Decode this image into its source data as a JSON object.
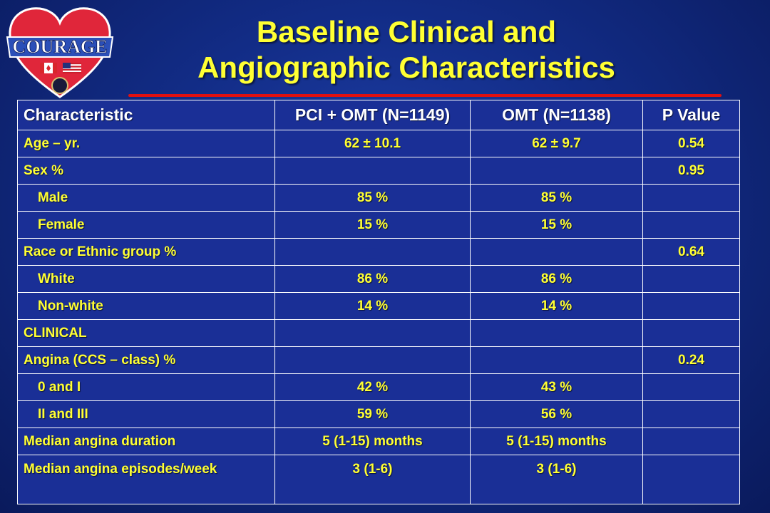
{
  "logo": {
    "text": "COURAGE"
  },
  "title": {
    "line1": "Baseline Clinical and",
    "line2": "Angiographic Characteristics"
  },
  "table": {
    "headers": [
      "Characteristic",
      "PCI + OMT (N=1149)",
      "OMT (N=1138)",
      "P Value"
    ],
    "rows": [
      {
        "label": "Age – yr.",
        "pci": "62 ± 10.1",
        "omt": "62 ± 9.7",
        "p": "0.54",
        "indent": false
      },
      {
        "label": "Sex %",
        "pci": "",
        "omt": "",
        "p": "0.95",
        "indent": false
      },
      {
        "label": "Male",
        "pci": "85 %",
        "omt": "85 %",
        "p": "",
        "indent": true
      },
      {
        "label": "Female",
        "pci": "15 %",
        "omt": "15 %",
        "p": "",
        "indent": true
      },
      {
        "label": "Race or Ethnic group %",
        "pci": "",
        "omt": "",
        "p": "0.64",
        "indent": false
      },
      {
        "label": "White",
        "pci": "86 %",
        "omt": "86 %",
        "p": "",
        "indent": true
      },
      {
        "label": "Non-white",
        "pci": "14 %",
        "omt": "14 %",
        "p": "",
        "indent": true
      },
      {
        "label": "CLINICAL",
        "pci": "",
        "omt": "",
        "p": "",
        "indent": false
      },
      {
        "label": "Angina (CCS – class) %",
        "pci": "",
        "omt": "",
        "p": "0.24",
        "indent": false
      },
      {
        "label": "0 and I",
        "pci": "42 %",
        "omt": "43 %",
        "p": "",
        "indent": true
      },
      {
        "label": "II and III",
        "pci": "59 %",
        "omt": "56 %",
        "p": "",
        "indent": true
      },
      {
        "label": "Median angina duration",
        "pci": "5 (1-15) months",
        "omt": "5 (1-15) months",
        "p": "",
        "indent": false
      },
      {
        "label": "Median angina episodes/week",
        "pci": "3 (1-6)",
        "omt": "3 (1-6)",
        "p": "",
        "indent": false
      }
    ]
  }
}
